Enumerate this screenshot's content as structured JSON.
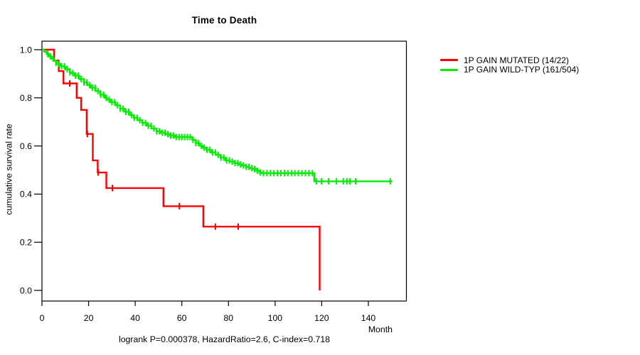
{
  "chart_data": {
    "type": "line",
    "chart_style": "kaplan-meier-step",
    "title": "Time to Death",
    "xlabel": "Month",
    "ylabel": "cumulative survival rate",
    "stats_note": "logrank P=0.000378, HazardRatio=2.6, C-index=0.718",
    "xlim": [
      0,
      156
    ],
    "ylim": [
      0.0,
      1.0
    ],
    "x_ticks": [
      0,
      20,
      40,
      60,
      80,
      100,
      120,
      140
    ],
    "y_ticks": [
      "0.0",
      "0.2",
      "0.4",
      "0.6",
      "0.8",
      "1.0"
    ],
    "grid": false,
    "legend_position": "right-outside",
    "series": [
      {
        "id": "mutated",
        "name": "1P GAIN MUTATED (14/22)",
        "color": "#ff0000",
        "events_total": "14/22",
        "steps": [
          [
            0,
            1.0
          ],
          [
            5.2,
            0.955
          ],
          [
            7.2,
            0.911
          ],
          [
            9.2,
            0.86
          ],
          [
            14.9,
            0.8
          ],
          [
            16.8,
            0.75
          ],
          [
            19.2,
            0.65
          ],
          [
            21.8,
            0.54
          ],
          [
            23.9,
            0.49
          ],
          [
            27.6,
            0.425
          ],
          [
            52.1,
            0.35
          ],
          [
            69.2,
            0.265
          ],
          [
            119.1,
            0.0
          ]
        ],
        "end_time": 119.1,
        "censor_times": [
          11.9,
          19.5,
          24.1,
          30.2,
          58.9,
          74.4,
          84.2
        ]
      },
      {
        "id": "wildtype",
        "name": "1P GAIN WILD-TYP (161/504)",
        "color": "#00ee00",
        "events_total": "161/504",
        "steps": [
          [
            0,
            1.0
          ],
          [
            1,
            0.991
          ],
          [
            2,
            0.982
          ],
          [
            3,
            0.972
          ],
          [
            4,
            0.963
          ],
          [
            5,
            0.954
          ],
          [
            6,
            0.945
          ],
          [
            6.4,
            0.941
          ],
          [
            8,
            0.931
          ],
          [
            10,
            0.919
          ],
          [
            12,
            0.906
          ],
          [
            12.5,
            0.903
          ],
          [
            14,
            0.892
          ],
          [
            16,
            0.878
          ],
          [
            18,
            0.864
          ],
          [
            19.5,
            0.853
          ],
          [
            21,
            0.842
          ],
          [
            23,
            0.828
          ],
          [
            25,
            0.813
          ],
          [
            27,
            0.799
          ],
          [
            27.8,
            0.793
          ],
          [
            29.5,
            0.782
          ],
          [
            31.5,
            0.769
          ],
          [
            33.5,
            0.755
          ],
          [
            35.5,
            0.742
          ],
          [
            37.5,
            0.729
          ],
          [
            39.3,
            0.717
          ],
          [
            41,
            0.707
          ],
          [
            43,
            0.696
          ],
          [
            45,
            0.684
          ],
          [
            47,
            0.673
          ],
          [
            49.1,
            0.661
          ],
          [
            51,
            0.655
          ],
          [
            53,
            0.649
          ],
          [
            55,
            0.643
          ],
          [
            57,
            0.637
          ],
          [
            64.5,
            0.625
          ],
          [
            66,
            0.612
          ],
          [
            67.5,
            0.601
          ],
          [
            68.9,
            0.593
          ],
          [
            70.5,
            0.584
          ],
          [
            72.5,
            0.573
          ],
          [
            74.5,
            0.563
          ],
          [
            76.5,
            0.552
          ],
          [
            78.7,
            0.54
          ],
          [
            80.5,
            0.535
          ],
          [
            82.5,
            0.529
          ],
          [
            84.5,
            0.523
          ],
          [
            85.7,
            0.519
          ],
          [
            87.5,
            0.513
          ],
          [
            89,
            0.508
          ],
          [
            90.3,
            0.504
          ],
          [
            92,
            0.497
          ],
          [
            93.5,
            0.49
          ],
          [
            94.2,
            0.487
          ],
          [
            116.8,
            0.453
          ]
        ],
        "end_time": 150.3,
        "censor_times": [
          2.5,
          3.7,
          4.8,
          6,
          7.2,
          8.4,
          9.6,
          10.8,
          12,
          13.2,
          14.4,
          15.6,
          16.8,
          18,
          19.2,
          20.4,
          21.6,
          22.8,
          24,
          25.2,
          26.4,
          27.6,
          28.8,
          30,
          31.2,
          32.4,
          33.6,
          34.8,
          36,
          37.2,
          38.4,
          39.6,
          40.8,
          42,
          43.2,
          44.4,
          45.6,
          46.8,
          48,
          49.2,
          50.4,
          51.6,
          52.8,
          54,
          55.2,
          56.4,
          57.6,
          58.8,
          60,
          61.2,
          62.4,
          63.6,
          64.8,
          66,
          67.2,
          68.4,
          69.6,
          70.8,
          72,
          73.2,
          74.4,
          75.6,
          76.8,
          78,
          79.2,
          80.4,
          81.6,
          82.8,
          84,
          85.2,
          86.4,
          87.6,
          88.8,
          90,
          91.2,
          92.4,
          93.6,
          95,
          96.5,
          98,
          99.5,
          101,
          102.5,
          104,
          105.5,
          107,
          108.5,
          110,
          111.5,
          113,
          114.5,
          116,
          117.7,
          119.9,
          122.9,
          126.3,
          129.3,
          130.8,
          132.1,
          134.5,
          149.4
        ]
      }
    ]
  }
}
